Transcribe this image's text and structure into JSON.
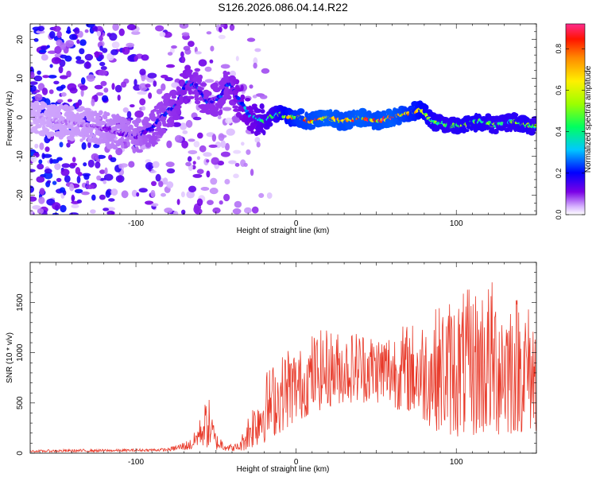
{
  "title": "S126.2026.086.04.14.R22",
  "colors": {
    "snr_line": "#e83a2a",
    "axis": "#000000",
    "background": "#ffffff"
  },
  "chart_data": [
    {
      "type": "heatmap",
      "title": "S126.2026.086.04.14.R22",
      "xlabel": "Height of straight line (km)",
      "ylabel": "Frequency (Hz)",
      "xlim": [
        -166,
        150
      ],
      "ylim": [
        -25,
        24
      ],
      "x_ticks": [
        -100,
        0,
        100
      ],
      "x_tick_labels": [
        "-100",
        "0",
        "100"
      ],
      "y_ticks": [
        -20,
        -10,
        0,
        10,
        20
      ],
      "y_tick_labels": [
        "-20",
        "-10",
        "0",
        "10",
        "20"
      ],
      "ridge": {
        "x": [
          -166,
          -130,
          -100,
          -90,
          -82,
          -75,
          -68,
          -62,
          -55,
          -48,
          -42,
          -35,
          -28,
          -20,
          -12,
          -5,
          0,
          10,
          20,
          30,
          40,
          50,
          60,
          70,
          78,
          85,
          95,
          105,
          115,
          125,
          135,
          145,
          150
        ],
        "y": [
          0,
          -2,
          -5,
          -3,
          1,
          3,
          9,
          8,
          4,
          5,
          9,
          4,
          0,
          -1,
          1,
          0,
          0,
          -1,
          0,
          -1,
          0,
          -1,
          0,
          1,
          2,
          -1,
          -2,
          -2,
          -1,
          -2,
          -1,
          -2,
          -2
        ],
        "amplitude": [
          0.05,
          0.08,
          0.15,
          0.2,
          0.22,
          0.25,
          0.28,
          0.25,
          0.25,
          0.25,
          0.25,
          0.3,
          0.35,
          0.45,
          0.55,
          0.7,
          0.8,
          0.85,
          0.9,
          0.85,
          0.9,
          0.85,
          0.9,
          0.8,
          0.7,
          0.6,
          0.55,
          0.6,
          0.6,
          0.55,
          0.55,
          0.6,
          0.5
        ]
      },
      "colorbar": {
        "label": "Normalized spectral amplitude",
        "range": [
          0,
          0.92
        ],
        "ticks": [
          0,
          0.2,
          0.4,
          0.6,
          0.8
        ],
        "tick_labels": [
          "0.0",
          "0.2",
          "0.4",
          "0.6",
          "0.8"
        ]
      }
    },
    {
      "type": "line",
      "xlabel": "Height of straight line (km)",
      "ylabel": "SNR (10 * v/v)",
      "xlim": [
        -166,
        150
      ],
      "ylim": [
        0,
        1900
      ],
      "x_ticks": [
        -100,
        0,
        100
      ],
      "x_tick_labels": [
        "-100",
        "0",
        "100"
      ],
      "y_ticks": [
        0,
        500,
        1000,
        1500
      ],
      "y_tick_labels": [
        "0",
        "500",
        "1000",
        "1500"
      ],
      "envelope": {
        "x": [
          -166,
          -140,
          -110,
          -80,
          -65,
          -60,
          -55,
          -50,
          -40,
          -35,
          -30,
          -25,
          -20,
          -15,
          -10,
          -5,
          0,
          5,
          10,
          20,
          30,
          40,
          50,
          60,
          70,
          80,
          90,
          100,
          110,
          120,
          130,
          140,
          150
        ],
        "min": [
          10,
          10,
          15,
          20,
          30,
          80,
          40,
          30,
          20,
          20,
          30,
          60,
          100,
          150,
          200,
          250,
          300,
          350,
          400,
          450,
          500,
          500,
          500,
          450,
          400,
          300,
          200,
          150,
          150,
          150,
          150,
          200,
          200
        ],
        "max": [
          30,
          40,
          40,
          50,
          150,
          350,
          600,
          200,
          80,
          120,
          400,
          600,
          800,
          900,
          950,
          1100,
          1050,
          1050,
          1200,
          1250,
          1200,
          1250,
          1200,
          1250,
          1300,
          1350,
          1500,
          1600,
          1650,
          1750,
          1700,
          1600,
          1400
        ]
      }
    }
  ]
}
